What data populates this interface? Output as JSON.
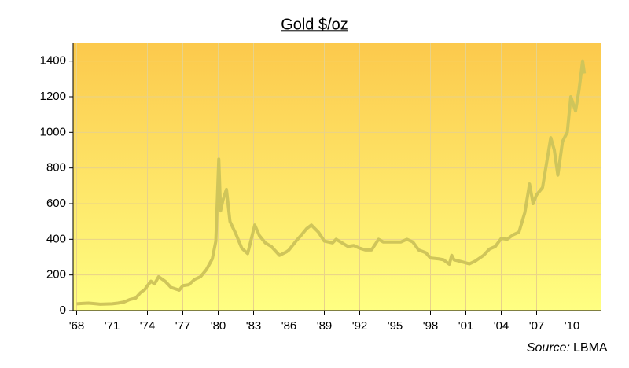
{
  "chart_data": {
    "type": "line",
    "title": "Gold $/oz",
    "source_label": "Source:",
    "source": "LBMA",
    "x": [
      1968,
      1968.5,
      1969,
      1969.5,
      1970,
      1970.5,
      1971,
      1971.5,
      1972,
      1972.5,
      1973,
      1973.4,
      1973.8,
      1974,
      1974.3,
      1974.6,
      1974.95,
      1975.5,
      1976,
      1976.7,
      1977,
      1977.5,
      1978,
      1978.5,
      1979,
      1979.5,
      1979.8,
      1980.05,
      1980.2,
      1980.4,
      1980.7,
      1981,
      1981.5,
      1982,
      1982.5,
      1983.1,
      1983.5,
      1984,
      1984.5,
      1985.2,
      1985.8,
      1986,
      1986.6,
      1987,
      1987.5,
      1987.9,
      1988.5,
      1989,
      1989.7,
      1990,
      1990.5,
      1991,
      1991.5,
      1992,
      1992.5,
      1993,
      1993.6,
      1994,
      1994.5,
      1995,
      1995.5,
      1996,
      1996.5,
      1997,
      1997.6,
      1998,
      1998.7,
      1999.1,
      1999.6,
      1999.8,
      2000,
      2000.6,
      2001.3,
      2001.8,
      2002.5,
      2003,
      2003.5,
      2004,
      2004.5,
      2005,
      2005.5,
      2006,
      2006.4,
      2006.7,
      2007,
      2007.5,
      2008.2,
      2008.5,
      2008.8,
      2009.2,
      2009.6,
      2009.9,
      2010.3,
      2010.6,
      2010.9,
      2011.05
    ],
    "series": [
      {
        "name": "Gold",
        "color": "#cfc55a",
        "values": [
          38,
          40,
          42,
          39,
          36,
          37,
          38,
          42,
          48,
          62,
          70,
          100,
          120,
          140,
          165,
          150,
          190,
          165,
          130,
          115,
          140,
          145,
          175,
          190,
          230,
          290,
          390,
          850,
          560,
          620,
          680,
          500,
          430,
          350,
          320,
          480,
          420,
          380,
          360,
          310,
          330,
          340,
          390,
          420,
          460,
          480,
          440,
          390,
          380,
          400,
          380,
          360,
          365,
          350,
          340,
          340,
          400,
          385,
          385,
          385,
          385,
          400,
          385,
          340,
          325,
          295,
          290,
          285,
          260,
          310,
          285,
          275,
          262,
          278,
          310,
          345,
          360,
          405,
          400,
          425,
          440,
          550,
          710,
          600,
          650,
          690,
          970,
          900,
          760,
          950,
          1000,
          1200,
          1120,
          1240,
          1400,
          1330
        ]
      }
    ],
    "xlim": [
      1967.7,
      2012.5
    ],
    "xticks": [
      {
        "value": 1968,
        "label": "'68"
      },
      {
        "value": 1971,
        "label": "'71"
      },
      {
        "value": 1974,
        "label": "'74"
      },
      {
        "value": 1977,
        "label": "'77"
      },
      {
        "value": 1980,
        "label": "'80"
      },
      {
        "value": 1983,
        "label": "'83"
      },
      {
        "value": 1986,
        "label": "'86"
      },
      {
        "value": 1989,
        "label": "'89"
      },
      {
        "value": 1992,
        "label": "'92"
      },
      {
        "value": 1995,
        "label": "'95"
      },
      {
        "value": 1998,
        "label": "'98"
      },
      {
        "value": 2001,
        "label": "'01"
      },
      {
        "value": 2004,
        "label": "'04"
      },
      {
        "value": 2007,
        "label": "'07"
      },
      {
        "value": 2010,
        "label": "'10"
      }
    ],
    "ylim": [
      0,
      1500
    ],
    "yticks": [
      0,
      200,
      400,
      600,
      800,
      1000,
      1200,
      1400
    ],
    "grid": true
  }
}
